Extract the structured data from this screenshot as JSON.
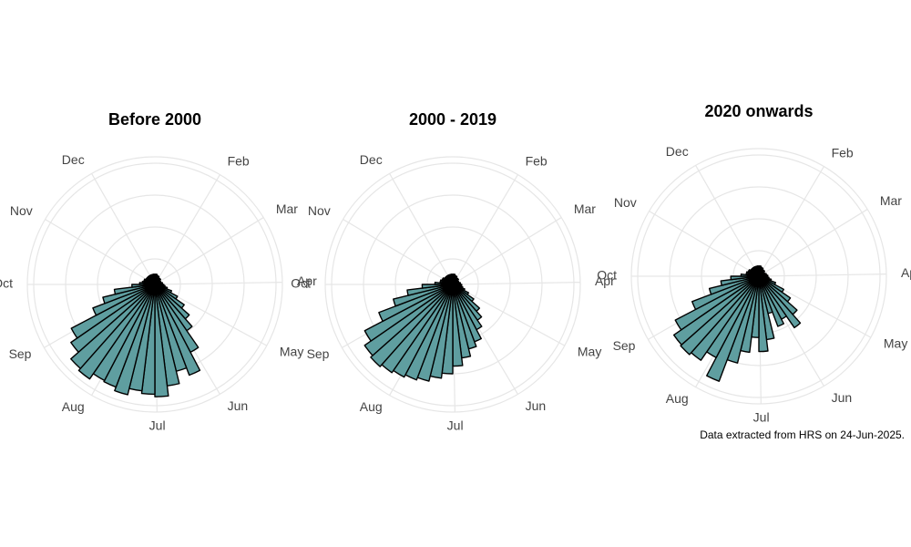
{
  "chart_data": [
    {
      "type": "polar-histogram",
      "title": "Before 2000",
      "color": "#5f9ea0",
      "bins": [
        0,
        1,
        2,
        3,
        4,
        5,
        6,
        7,
        8,
        9,
        10,
        11,
        12,
        13,
        14,
        15,
        16,
        17,
        18,
        19,
        20,
        21,
        22,
        23,
        24,
        25,
        26,
        27,
        28,
        29,
        30,
        31,
        32,
        33,
        34,
        35,
        36,
        37,
        38,
        39,
        40,
        41,
        42,
        43,
        44,
        45,
        46,
        47,
        48,
        49,
        50,
        51,
        52
      ],
      "values": [
        8,
        8,
        7,
        7,
        6,
        6,
        6,
        5,
        5,
        5,
        5,
        6,
        6,
        7,
        8,
        10,
        14,
        20,
        28,
        36,
        44,
        60,
        76,
        70,
        80,
        88,
        86,
        84,
        89,
        86,
        85,
        90,
        88,
        80,
        74,
        52,
        42,
        32,
        18,
        12,
        10,
        9,
        9,
        8,
        8,
        8,
        8,
        8,
        8,
        8,
        8,
        8
      ],
      "xlim": [
        0,
        52
      ],
      "xticks": [
        {
          "value": 4.43,
          "label": "Feb"
        },
        {
          "value": 8.43,
          "label": "Mar"
        },
        {
          "value": 12.86,
          "label": "Apr"
        },
        {
          "value": 17.14,
          "label": "May"
        },
        {
          "value": 21.57,
          "label": "Jun"
        },
        {
          "value": 25.86,
          "label": "Jul"
        },
        {
          "value": 30.29,
          "label": "Aug"
        },
        {
          "value": 34.71,
          "label": "Sep"
        },
        {
          "value": 39,
          "label": "Oct"
        },
        {
          "value": 43.43,
          "label": "Nov"
        },
        {
          "value": 47.71,
          "label": "Dec"
        }
      ],
      "ylim": [
        0,
        100
      ],
      "yticks": [
        20,
        45,
        70,
        95
      ],
      "grid": true
    },
    {
      "type": "polar-histogram",
      "title": "2000 - 2019",
      "color": "#5f9ea0",
      "bins": [
        0,
        1,
        2,
        3,
        4,
        5,
        6,
        7,
        8,
        9,
        10,
        11,
        12,
        13,
        14,
        15,
        16,
        17,
        18,
        19,
        20,
        21,
        22,
        23,
        24,
        25,
        26,
        27,
        28,
        29,
        30,
        31,
        32,
        33,
        34,
        35,
        36,
        37,
        38,
        39,
        40,
        41,
        42,
        43,
        44,
        45,
        46,
        47,
        48,
        49,
        50,
        51,
        52
      ],
      "values": [
        8,
        8,
        7,
        7,
        6,
        6,
        6,
        5,
        5,
        5,
        5,
        6,
        6,
        7,
        7,
        8,
        10,
        14,
        20,
        28,
        34,
        40,
        48,
        52,
        58,
        64,
        70,
        74,
        78,
        80,
        82,
        84,
        86,
        84,
        78,
        62,
        48,
        36,
        24,
        14,
        10,
        10,
        9,
        9,
        8,
        8,
        8,
        8,
        8,
        8,
        8,
        8
      ],
      "xlim": [
        0,
        52
      ],
      "xticks": [
        {
          "value": 4.43,
          "label": "Feb"
        },
        {
          "value": 8.43,
          "label": "Mar"
        },
        {
          "value": 12.86,
          "label": "Apr"
        },
        {
          "value": 17.14,
          "label": "May"
        },
        {
          "value": 21.57,
          "label": "Jun"
        },
        {
          "value": 25.86,
          "label": "Jul"
        },
        {
          "value": 30.29,
          "label": "Aug"
        },
        {
          "value": 34.71,
          "label": "Sep"
        },
        {
          "value": 39,
          "label": "Oct"
        },
        {
          "value": 43.43,
          "label": "Nov"
        },
        {
          "value": 47.71,
          "label": "Dec"
        }
      ],
      "ylim": [
        0,
        100
      ],
      "yticks": [
        20,
        45,
        70,
        95
      ],
      "grid": true
    },
    {
      "type": "polar-histogram",
      "title": "2020 onwards",
      "color": "#5f9ea0",
      "bins": [
        0,
        1,
        2,
        3,
        4,
        5,
        6,
        7,
        8,
        9,
        10,
        11,
        12,
        13,
        14,
        15,
        16,
        17,
        18,
        19,
        20,
        21,
        22,
        23,
        24,
        25,
        26,
        27,
        28,
        29,
        30,
        31,
        32,
        33,
        34,
        35,
        36,
        37,
        38,
        39,
        40,
        41,
        42,
        43,
        44,
        45,
        46,
        47,
        48,
        49,
        50,
        51,
        52
      ],
      "values": [
        8,
        8,
        7,
        7,
        6,
        6,
        6,
        5,
        5,
        5,
        6,
        6,
        7,
        7,
        8,
        10,
        14,
        22,
        30,
        40,
        49,
        38,
        42,
        30,
        50,
        59,
        48,
        60,
        70,
        88,
        72,
        80,
        82,
        81,
        74,
        56,
        40,
        30,
        22,
        14,
        10,
        10,
        9,
        9,
        8,
        8,
        8,
        8,
        8,
        8,
        8,
        8
      ],
      "xlim": [
        0,
        52
      ],
      "xticks": [
        {
          "value": 4.43,
          "label": "Feb"
        },
        {
          "value": 8.43,
          "label": "Mar"
        },
        {
          "value": 12.86,
          "label": "Apr"
        },
        {
          "value": 17.14,
          "label": "May"
        },
        {
          "value": 21.57,
          "label": "Jun"
        },
        {
          "value": 25.86,
          "label": "Jul"
        },
        {
          "value": 30.29,
          "label": "Aug"
        },
        {
          "value": 34.71,
          "label": "Sep"
        },
        {
          "value": 39,
          "label": "Oct"
        },
        {
          "value": 43.43,
          "label": "Nov"
        },
        {
          "value": 47.71,
          "label": "Dec"
        }
      ],
      "ylim": [
        0,
        100
      ],
      "yticks": [
        20,
        45,
        70,
        95
      ],
      "grid": true,
      "caption": "Data extracted from HRS on 24-Jun-2025."
    }
  ]
}
